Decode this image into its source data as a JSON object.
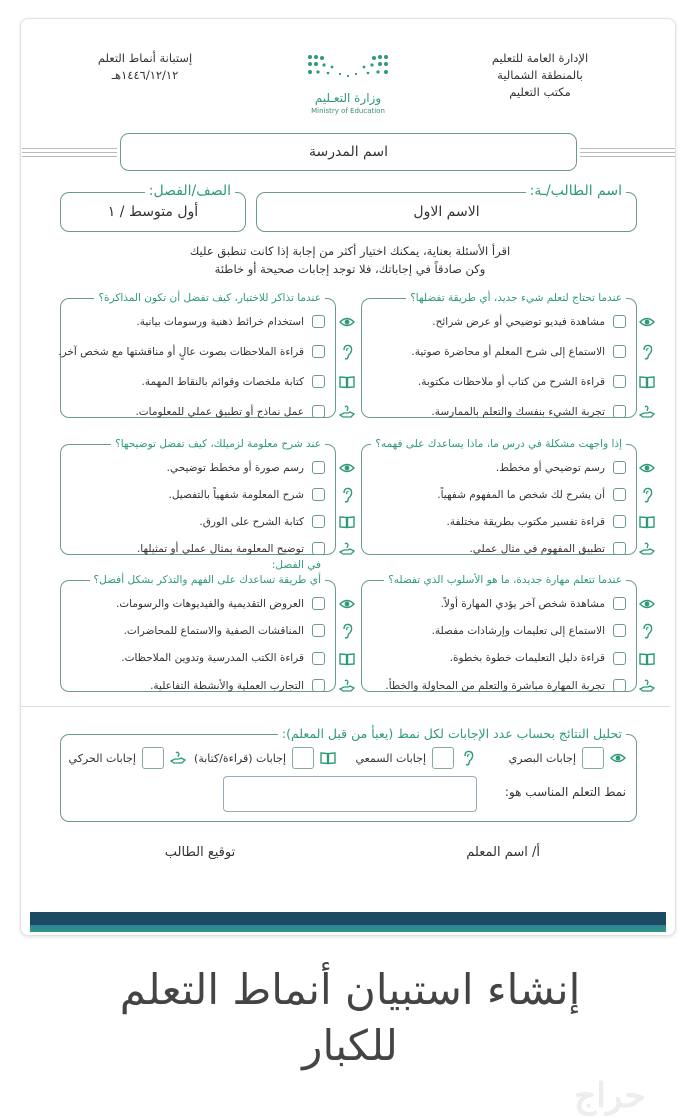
{
  "header": {
    "right_lines": [
      "الإدارة العامة للتعليم",
      "بالمنطقة الشمالية",
      "مكتب التعليم"
    ],
    "left_title": "إستبانة أنماط التعلم",
    "left_date": "١٤٤٦/١٢/١٢هـ",
    "logo_ar": "وزارة التعـليم",
    "logo_en": "Ministry of Education"
  },
  "school_name": "اسم المدرسة",
  "student": {
    "label": "اسم الطالب/ـة:",
    "value": "الاسم الاول"
  },
  "class": {
    "label": "الصف/الفصل:",
    "value": "أول متوسط / ١"
  },
  "instructions": [
    "اقرأ الأسئلة بعناية، يمكنك اختيار أكثر من إجابة إذا كانت تنطبق عليك",
    "وكن صادقاً في إجاباتك، فلا توجد إجابات صحيحة أو خاطئة"
  ],
  "icons": [
    "eye-icon",
    "ear-icon",
    "book-icon",
    "hand-icon"
  ],
  "questions": [
    {
      "title": "عندما تحتاج لتعلم شيء جديد، أي طريقة تفضلها؟",
      "options": [
        "مشاهدة فيديو توضيحي أو عرض شرائح.",
        "الاستماع إلى شرح المعلم أو محاضرة صوتية.",
        "قراءة الشرح من كتاب أو ملاحظات مكتوبة.",
        "تجربة الشيء بنفسك والتعلم بالممارسة."
      ]
    },
    {
      "title": "عندما تذاكر للاختبار، كيف تفضل أن تكون المذاكرة؟",
      "options": [
        "استخدام خرائط ذهنية ورسومات بيانية.",
        "قراءة الملاحظات بصوت عالٍ أو مناقشتها مع شخص آخر.",
        "كتابة ملخصات وقوائم بالنقاط المهمة.",
        "عمل نماذج أو تطبيق عملي للمعلومات."
      ]
    },
    {
      "title": "إذا واجهت مشكلة في درس ما، ماذا يساعدك على فهمه؟",
      "options": [
        "رسم توضيحي أو مخطط.",
        "أن يشرح لك شخص ما المفهوم شفهياً.",
        "قراءة تفسير مكتوب بطريقة مختلفة.",
        "تطبيق المفهوم في مثال عملي."
      ]
    },
    {
      "title": "عند شرح معلومة لزميلك، كيف تفضل توضيحها؟",
      "options": [
        "رسم صورة أو مخطط توضيحي.",
        "شرح المعلومة شفهياً بالتفصيل.",
        "كتابة الشرح على الورق.",
        "توضيح المعلومة بمثال عملي أو تمثيلها."
      ]
    },
    {
      "title": "عندما تتعلم مهارة جديدة، ما هو الأسلوب الذي تفضله؟",
      "options": [
        "مشاهدة شخص آخر يؤدي المهارة أولاً.",
        "الاستماع إلى تعليمات وإرشادات مفصلة.",
        "قراءة دليل التعليمات خطوة بخطوة.",
        "تجربة المهارة مباشرة والتعلم من المحاولة والخطأ."
      ]
    },
    {
      "title_line1": "في الفصل:",
      "title": "أي طريقة تساعدك على الفهم والتذكر بشكل أفضل؟",
      "options": [
        "العروض التقديمية والفيديوهات والرسومات.",
        "المناقشات الصفية والاستماع للمحاضرات.",
        "قراءة الكتب المدرسية وتدوين الملاحظات.",
        "التجارب العملية والأنشطة التفاعلية."
      ]
    }
  ],
  "analysis": {
    "title": "تحليل النتائج بحساب عدد الإجابات لكل نمط (يعبأ من قبل المعلم):",
    "counts": [
      "إجابات البصري",
      "إجابات السمعي",
      "إجابات (قراءة/كتابة)",
      "إجابات الحركي"
    ],
    "result_label": "نمط التعلم المناسب هو:",
    "result_value": ""
  },
  "signatures": {
    "teacher": "أ/ اسم المعلم",
    "student": "توقيع الطالب"
  },
  "banner_title": [
    "إنشاء استبيان أنماط التعلم",
    "للكبار"
  ],
  "watermark": "حراج",
  "colors": {
    "accent": "#2e9a78",
    "border": "#6c9a8f",
    "stripe_dark": "#1d4a63"
  }
}
